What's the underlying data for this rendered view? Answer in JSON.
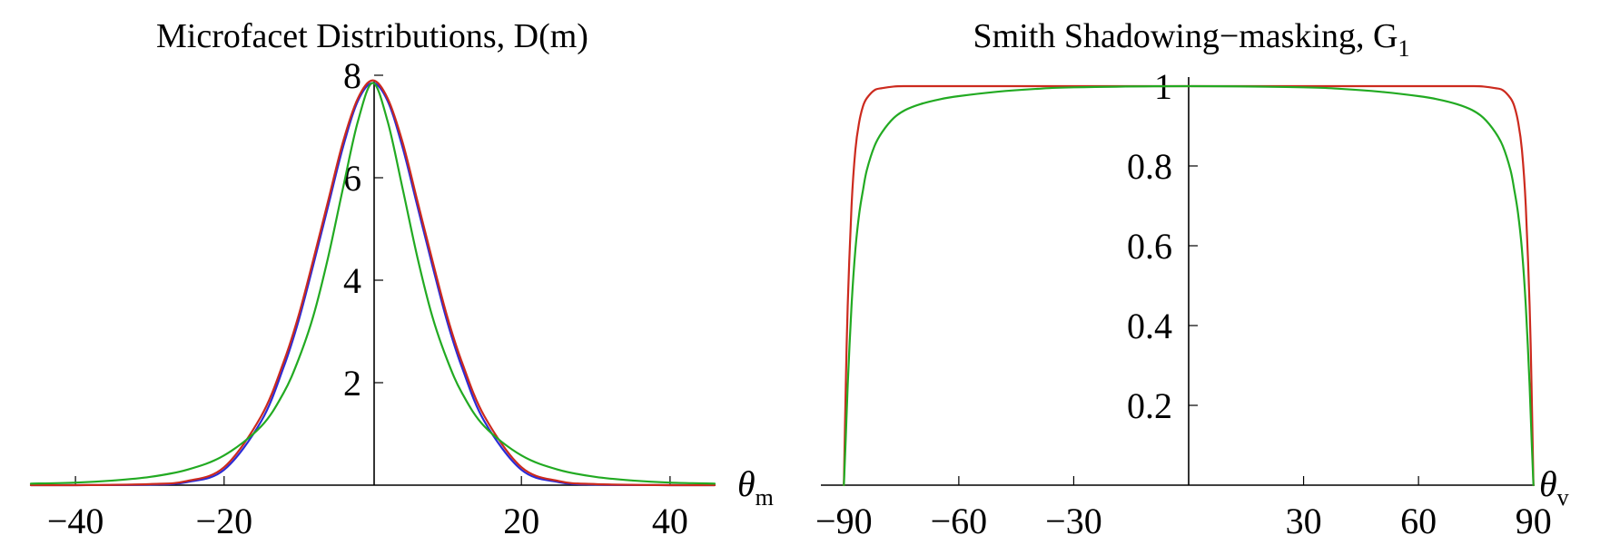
{
  "chart_data": [
    {
      "type": "line",
      "title": "Microfacet Distributions, D(m)",
      "xlabel": "θ",
      "xlabel_sub": "m",
      "ylabel": "",
      "xlim": [
        -46,
        46
      ],
      "ylim": [
        0,
        8
      ],
      "x_ticks": [
        -40,
        -20,
        20,
        40
      ],
      "x_tick_labels": [
        "−40",
        "−20",
        "20",
        "40"
      ],
      "y_ticks": [
        2,
        4,
        6,
        8
      ],
      "y_tick_labels": [
        "2",
        "4",
        "6",
        "8"
      ],
      "grid": false,
      "series": [
        {
          "color": "#2b2bd6",
          "x": [
            -46,
            -40,
            -30,
            -25,
            -20,
            -15,
            -12,
            -10,
            -8,
            -6,
            -4,
            -2,
            0,
            2,
            4,
            6,
            8,
            10,
            12,
            15,
            20,
            25,
            30,
            40,
            46
          ],
          "y": [
            0,
            0,
            0.01,
            0.06,
            0.3,
            1.25,
            2.3,
            3.2,
            4.3,
            5.45,
            6.6,
            7.5,
            7.85,
            7.5,
            6.6,
            5.45,
            4.3,
            3.2,
            2.3,
            1.25,
            0.3,
            0.06,
            0.01,
            0,
            0
          ]
        },
        {
          "color": "#cc2a1e",
          "x": [
            -46,
            -40,
            -30,
            -25,
            -20,
            -15,
            -12,
            -10,
            -8,
            -6,
            -4,
            -2,
            0,
            2,
            4,
            6,
            8,
            10,
            12,
            15,
            20,
            25,
            30,
            40,
            46
          ],
          "y": [
            0,
            0,
            0.02,
            0.08,
            0.35,
            1.35,
            2.4,
            3.3,
            4.4,
            5.55,
            6.7,
            7.55,
            7.9,
            7.55,
            6.7,
            5.55,
            4.4,
            3.3,
            2.4,
            1.35,
            0.35,
            0.08,
            0.02,
            0,
            0
          ]
        },
        {
          "color": "#22aa22",
          "x": [
            -46,
            -40,
            -35,
            -30,
            -25,
            -20,
            -15,
            -12,
            -10,
            -8,
            -6,
            -4,
            -2,
            0,
            2,
            4,
            6,
            8,
            10,
            12,
            15,
            20,
            25,
            30,
            35,
            40,
            46
          ],
          "y": [
            0.03,
            0.05,
            0.09,
            0.16,
            0.3,
            0.58,
            1.15,
            1.8,
            2.45,
            3.3,
            4.45,
            5.8,
            7.1,
            7.85,
            7.1,
            5.8,
            4.45,
            3.3,
            2.45,
            1.8,
            1.15,
            0.58,
            0.3,
            0.16,
            0.09,
            0.05,
            0.03
          ]
        }
      ]
    },
    {
      "type": "line",
      "title": "Smith Shadowing−masking, G",
      "title_sub": "1",
      "xlabel": "θ",
      "xlabel_sub": "v",
      "ylabel": "",
      "xlim": [
        -96,
        96
      ],
      "ylim": [
        0,
        1
      ],
      "x_ticks": [
        -90,
        -60,
        -30,
        30,
        60,
        90
      ],
      "x_tick_labels": [
        "−90",
        "−60",
        "−30",
        "30",
        "60",
        "90"
      ],
      "y_ticks": [
        0.2,
        0.4,
        0.6,
        0.8,
        1
      ],
      "y_tick_labels": [
        "0.2",
        "0.4",
        "0.6",
        "0.8",
        "1"
      ],
      "grid": false,
      "series": [
        {
          "color": "#cc2a1e",
          "x": [
            -90,
            -89.5,
            -89,
            -88,
            -87,
            -86,
            -85,
            -84,
            -82,
            -80,
            -77,
            -74,
            -70,
            -60,
            0,
            60,
            70,
            74,
            77,
            80,
            82,
            84,
            85,
            86,
            87,
            88,
            89,
            89.5,
            90
          ],
          "y": [
            0,
            0.25,
            0.45,
            0.7,
            0.84,
            0.91,
            0.95,
            0.97,
            0.99,
            0.995,
            0.999,
            1,
            1,
            1,
            1,
            1,
            1,
            1,
            0.999,
            0.995,
            0.99,
            0.97,
            0.95,
            0.91,
            0.84,
            0.7,
            0.45,
            0.25,
            0
          ]
        },
        {
          "color": "#22aa22",
          "x": [
            -90,
            -89.5,
            -89,
            -88,
            -87,
            -86,
            -85,
            -84,
            -82,
            -80,
            -77,
            -74,
            -70,
            -65,
            -60,
            -50,
            -40,
            -30,
            0,
            30,
            40,
            50,
            60,
            65,
            70,
            74,
            77,
            80,
            82,
            84,
            85,
            86,
            87,
            88,
            89,
            89.5,
            90
          ],
          "y": [
            0,
            0.12,
            0.25,
            0.45,
            0.59,
            0.68,
            0.74,
            0.79,
            0.85,
            0.885,
            0.92,
            0.94,
            0.955,
            0.967,
            0.975,
            0.986,
            0.993,
            0.997,
            1,
            0.997,
            0.993,
            0.986,
            0.975,
            0.967,
            0.955,
            0.94,
            0.92,
            0.885,
            0.85,
            0.79,
            0.74,
            0.68,
            0.59,
            0.45,
            0.25,
            0.12,
            0
          ]
        }
      ]
    }
  ]
}
